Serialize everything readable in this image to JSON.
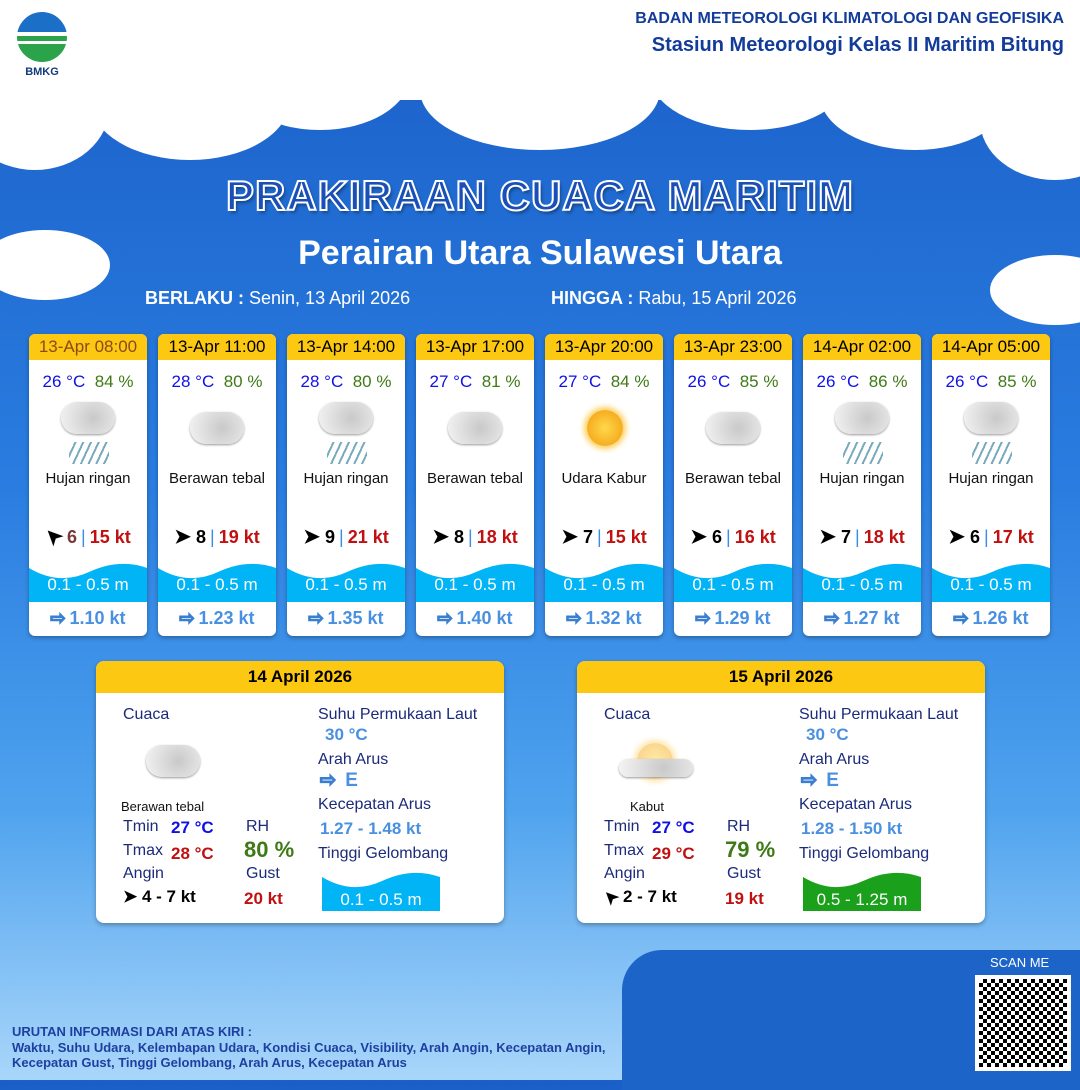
{
  "header": {
    "logo_text": "BMKG",
    "org": "BADAN METEOROLOGI KLIMATOLOGI DAN GEOFISIKA",
    "station": "Stasiun Meteorologi Kelas II Maritim Bitung"
  },
  "title": "PRAKIRAAN CUACA MARITIM",
  "subtitle": "Perairan Utara Sulawesi Utara",
  "validity": {
    "from_label": "BERLAKU :",
    "from": "Senin, 13 April 2026",
    "to_label": "HINGGA :",
    "to": "Rabu, 15 April 2026"
  },
  "colors": {
    "header_yellow": "#fcc811",
    "temp": "#1010e8",
    "humidity": "#3e7a16",
    "gust": "#c01010",
    "wave": "#00b4f5",
    "wave_high": "#1aa01a"
  },
  "forecasts": [
    {
      "time": "13-Apr 08:00",
      "temp": "26 °C",
      "rh": "84 %",
      "weather": "Hujan ringan",
      "icon": "rain-cloud-icon",
      "wind": "6",
      "gust": "15 kt",
      "wave": "0.1 - 0.5 m",
      "current": "1.10 kt"
    },
    {
      "time": "13-Apr 11:00",
      "temp": "28 °C",
      "rh": "80 %",
      "weather": "Berawan tebal",
      "icon": "cloud-icon",
      "wind": "8",
      "gust": "19 kt",
      "wave": "0.1 - 0.5 m",
      "current": "1.23 kt"
    },
    {
      "time": "13-Apr 14:00",
      "temp": "28 °C",
      "rh": "80 %",
      "weather": "Hujan ringan",
      "icon": "rain-cloud-icon",
      "wind": "9",
      "gust": "21 kt",
      "wave": "0.1 - 0.5 m",
      "current": "1.35 kt"
    },
    {
      "time": "13-Apr 17:00",
      "temp": "27 °C",
      "rh": "81 %",
      "weather": "Berawan tebal",
      "icon": "cloud-icon",
      "wind": "8",
      "gust": "18 kt",
      "wave": "0.1 - 0.5 m",
      "current": "1.40 kt"
    },
    {
      "time": "13-Apr 20:00",
      "temp": "27 °C",
      "rh": "84 %",
      "weather": "Udara Kabur",
      "icon": "haze-sun-icon",
      "wind": "7",
      "gust": "15 kt",
      "wave": "0.1 - 0.5 m",
      "current": "1.32 kt"
    },
    {
      "time": "13-Apr 23:00",
      "temp": "26 °C",
      "rh": "85 %",
      "weather": "Berawan tebal",
      "icon": "cloud-icon",
      "wind": "6",
      "gust": "16 kt",
      "wave": "0.1 - 0.5 m",
      "current": "1.29 kt"
    },
    {
      "time": "14-Apr 02:00",
      "temp": "26 °C",
      "rh": "86 %",
      "weather": "Hujan ringan",
      "icon": "rain-cloud-icon",
      "wind": "7",
      "gust": "18 kt",
      "wave": "0.1 - 0.5 m",
      "current": "1.27 kt"
    },
    {
      "time": "14-Apr 05:00",
      "temp": "26 °C",
      "rh": "85 %",
      "weather": "Hujan ringan",
      "icon": "rain-cloud-icon",
      "wind": "6",
      "gust": "17 kt",
      "wave": "0.1 - 0.5 m",
      "current": "1.26 kt"
    }
  ],
  "labels": {
    "cuaca": "Cuaca",
    "tmin": "Tmin",
    "tmax": "Tmax",
    "rh": "RH",
    "angin": "Angin",
    "gust": "Gust",
    "sst": "Suhu Permukaan Laut",
    "arah": "Arah Arus",
    "kec": "Kecepatan Arus",
    "tinggi": "Tinggi Gelombang"
  },
  "daily": [
    {
      "date": "14 April 2026",
      "weather": "Berawan tebal",
      "tmin": "27 °C",
      "tmax": "28 °C",
      "rh": "80 %",
      "wind": "4  - 7 kt",
      "gust": "20 kt",
      "sst": "30 °C",
      "current_dir": "E",
      "current_speed": "1.27  - 1.48 kt",
      "wave": "0.1 - 0.5 m"
    },
    {
      "date": "15 April 2026",
      "weather": "Kabut",
      "tmin": "27 °C",
      "tmax": "29 °C",
      "rh": "79 %",
      "wind": "2  - 7 kt",
      "gust": "19 kt",
      "sst": "30 °C",
      "current_dir": "E",
      "current_speed": "1.28  - 1.50 kt",
      "wave": "0.5 - 1.25 m"
    }
  ],
  "footer": {
    "scan": "SCAN ME",
    "title": "URUTAN INFORMASI DARI ATAS KIRI :",
    "text": "Waktu, Suhu Udara, Kelembapan Udara, Kondisi Cuaca, Visibility, Arah Angin, Kecepatan Angin, Kecepatan Gust, Tinggi Gelombang, Arah Arus, Kecepatan Arus"
  }
}
